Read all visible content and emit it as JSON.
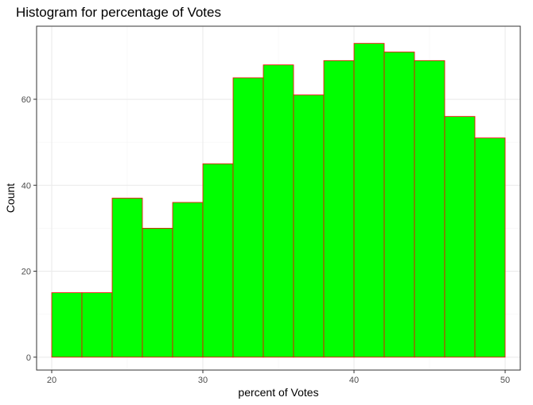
{
  "chart_data": {
    "type": "bar",
    "title": "Histogram for percentage of Votes",
    "xlabel": "percent of Votes",
    "ylabel": "Count",
    "bin_edges": [
      20,
      22,
      24,
      26,
      28,
      30,
      32,
      34,
      36,
      38,
      40,
      42,
      44,
      46,
      48,
      50
    ],
    "values": [
      15,
      15,
      37,
      30,
      36,
      45,
      65,
      68,
      61,
      69,
      73,
      71,
      69,
      56,
      51
    ],
    "xlim": [
      19,
      51
    ],
    "ylim": [
      -3,
      77
    ],
    "x_ticks": [
      20,
      30,
      40,
      50
    ],
    "y_ticks": [
      0,
      20,
      40,
      60
    ],
    "grid": true,
    "bar_fill": "#00ff00",
    "bar_stroke": "#ff0000",
    "grid_major_color": "#ebebeb",
    "grid_minor_color": "#f5f5f5",
    "panel_border_color": "#333333"
  }
}
